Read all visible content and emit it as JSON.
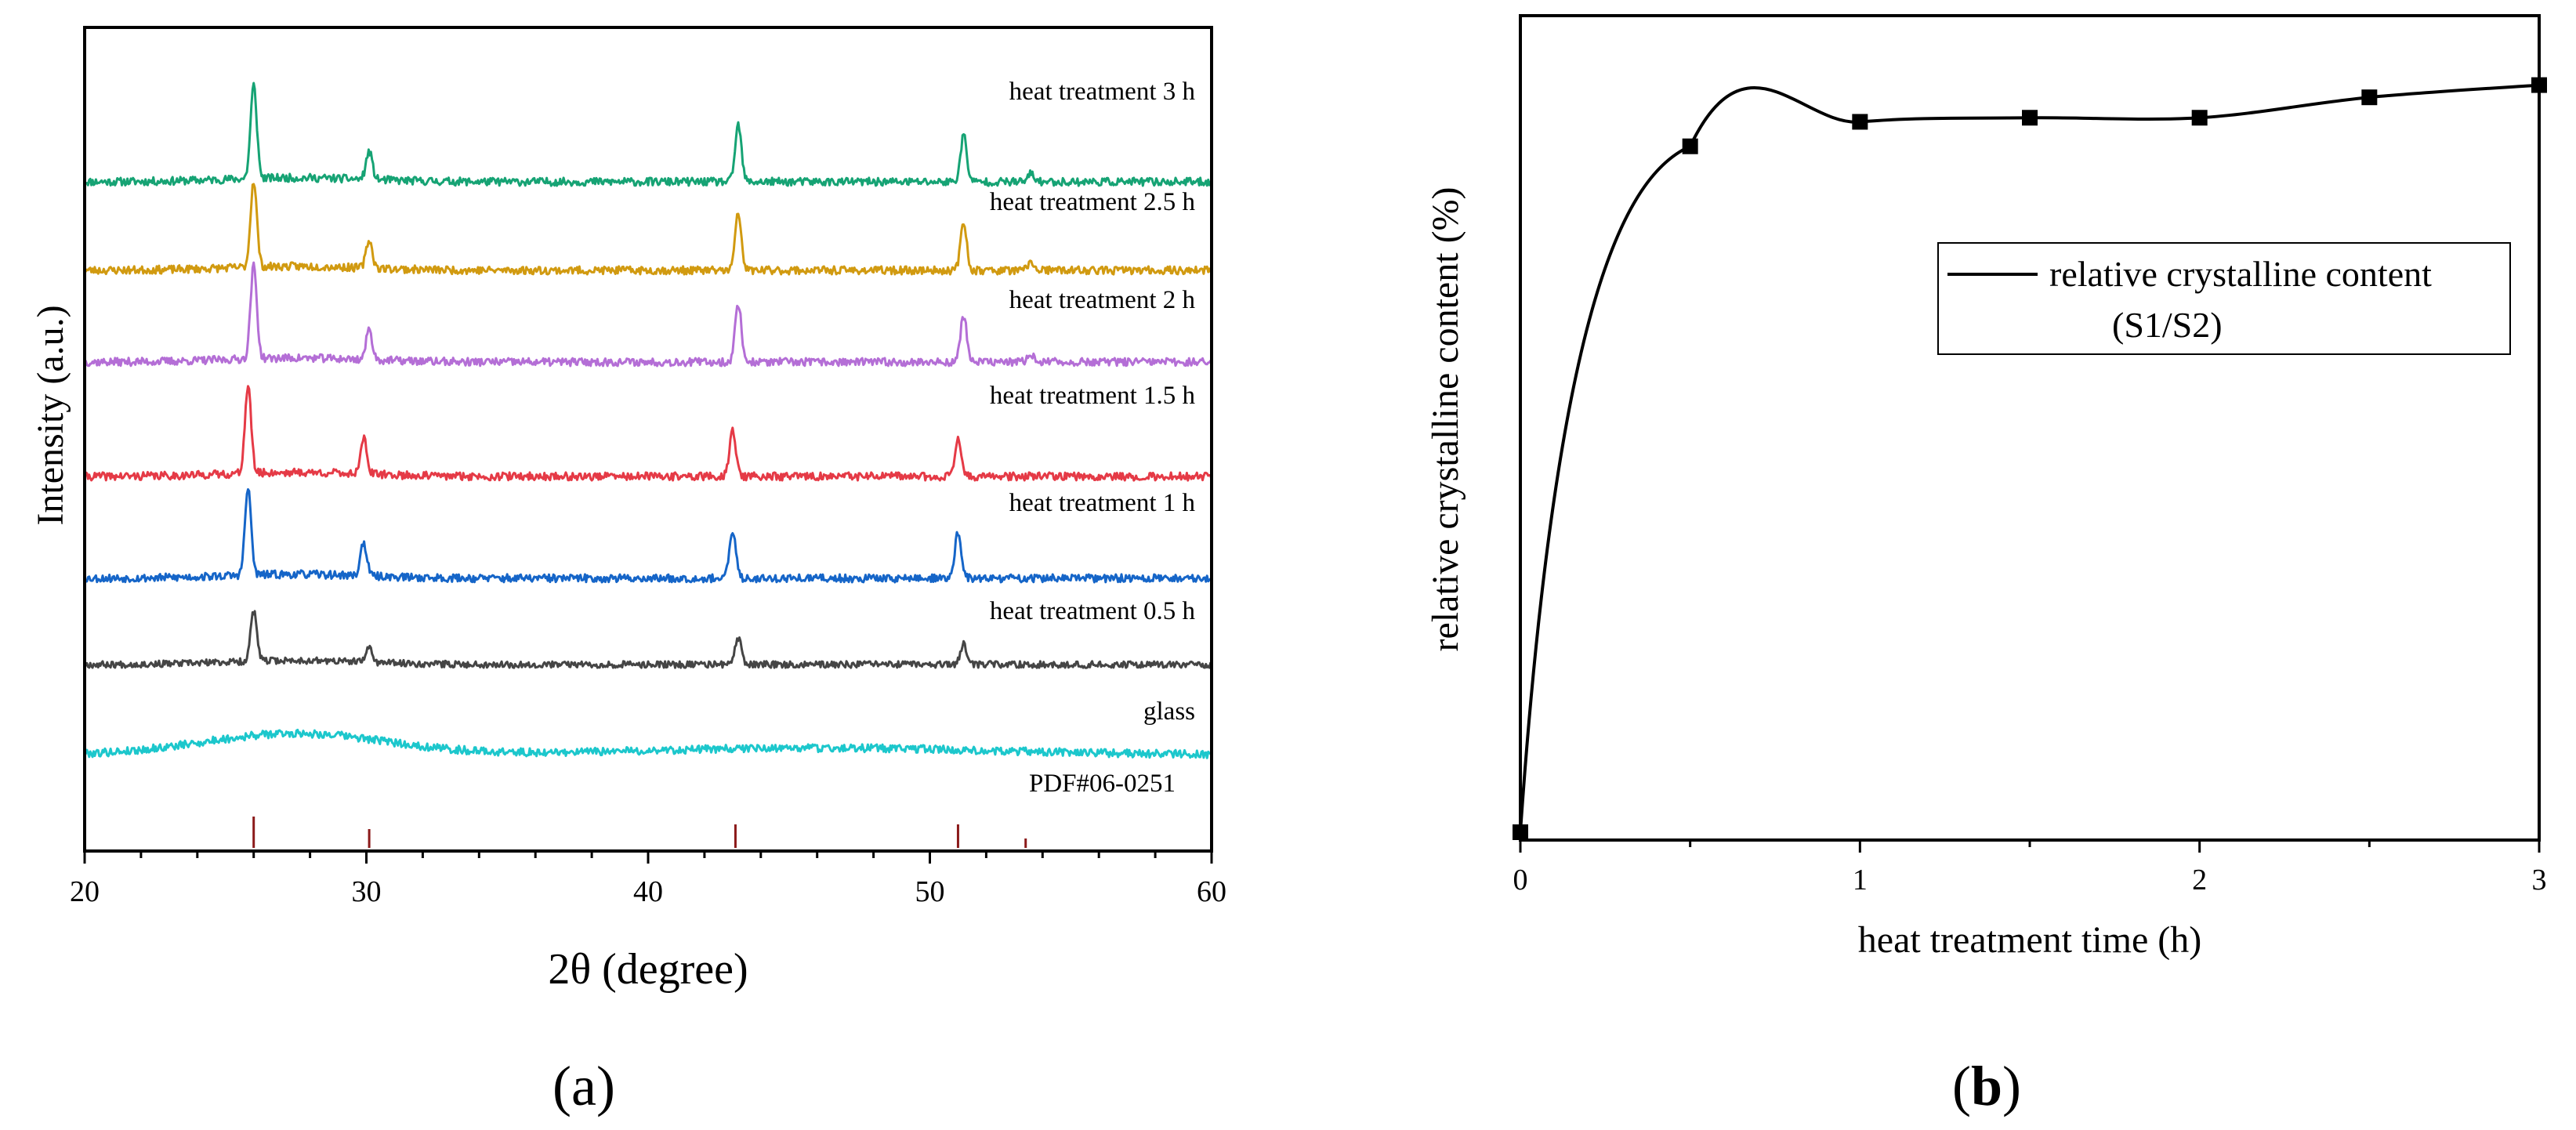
{
  "chart_data": [
    {
      "panel": "(a)",
      "panel_letter": "a",
      "type": "line",
      "xlabel": "2θ (degree)",
      "ylabel": "Intensity (a.u.)",
      "xlim": [
        20,
        60
      ],
      "xticks": [
        20,
        30,
        40,
        50,
        60
      ],
      "yticks_shown": false,
      "series": [
        {
          "name": "heat treatment 3 h",
          "color": "#16a374",
          "noise_seed": 11,
          "noise_amp": 0.06,
          "peaks": [
            {
              "x": 26.0,
              "h": 1.4
            },
            {
              "x": 30.1,
              "h": 0.42
            },
            {
              "x": 43.2,
              "h": 0.85
            },
            {
              "x": 51.2,
              "h": 0.7
            },
            {
              "x": 53.6,
              "h": 0.12
            }
          ]
        },
        {
          "name": "heat treatment 2.5 h",
          "color": "#d19a10",
          "noise_seed": 23,
          "noise_amp": 0.06,
          "peaks": [
            {
              "x": 26.0,
              "h": 1.3
            },
            {
              "x": 30.1,
              "h": 0.42
            },
            {
              "x": 43.2,
              "h": 0.85
            },
            {
              "x": 51.2,
              "h": 0.7
            },
            {
              "x": 53.6,
              "h": 0.12
            }
          ]
        },
        {
          "name": "heat treatment 2 h",
          "color": "#b46ed6",
          "noise_seed": 37,
          "noise_amp": 0.06,
          "peaks": [
            {
              "x": 26.0,
              "h": 1.4
            },
            {
              "x": 30.1,
              "h": 0.45
            },
            {
              "x": 43.2,
              "h": 0.88
            },
            {
              "x": 51.2,
              "h": 0.7
            },
            {
              "x": 53.6,
              "h": 0.12
            }
          ]
        },
        {
          "name": "heat treatment 1.5 h",
          "color": "#e53a46",
          "noise_seed": 41,
          "noise_amp": 0.06,
          "peaks": [
            {
              "x": 25.8,
              "h": 1.3
            },
            {
              "x": 29.9,
              "h": 0.55
            },
            {
              "x": 43.0,
              "h": 0.7
            },
            {
              "x": 51.0,
              "h": 0.6
            }
          ]
        },
        {
          "name": "heat treatment 1 h",
          "color": "#1565c8",
          "noise_seed": 53,
          "noise_amp": 0.06,
          "peaks": [
            {
              "x": 25.8,
              "h": 1.3
            },
            {
              "x": 29.9,
              "h": 0.5
            },
            {
              "x": 43.0,
              "h": 0.72
            },
            {
              "x": 51.0,
              "h": 0.7
            }
          ]
        },
        {
          "name": "heat treatment 0.5 h",
          "color": "#454545",
          "noise_seed": 67,
          "noise_amp": 0.05,
          "peaks": [
            {
              "x": 26.0,
              "h": 0.75
            },
            {
              "x": 30.1,
              "h": 0.22
            },
            {
              "x": 43.2,
              "h": 0.4
            },
            {
              "x": 51.2,
              "h": 0.3
            }
          ]
        },
        {
          "name": "glass",
          "color": "#1cc7cc",
          "noise_seed": 79,
          "noise_amp": 0.06,
          "amorphous": true,
          "peaks": []
        }
      ],
      "reference": {
        "name": "PDF#06-0251",
        "color": "#8b1a1a",
        "lines": [
          {
            "x": 26.0,
            "h": 1.0
          },
          {
            "x": 30.1,
            "h": 0.6
          },
          {
            "x": 43.1,
            "h": 0.75
          },
          {
            "x": 51.0,
            "h": 0.75
          },
          {
            "x": 53.4,
            "h": 0.3
          }
        ]
      }
    },
    {
      "panel": "(b)",
      "panel_letter": "b",
      "type": "line",
      "xlabel": "heat treatment time (h)",
      "ylabel": "relative crystalline content (%)",
      "xlim": [
        0,
        3
      ],
      "ylim": [
        0,
        1.0
      ],
      "xticks": [
        0,
        1,
        2,
        3
      ],
      "yticks_shown": false,
      "legend": {
        "label_line1": "relative crystalline content",
        "label_line2": "(S1/S2)",
        "position": "upper-right"
      },
      "series": [
        {
          "name": "relative crystalline content (S1/S2)",
          "color": "#000000",
          "x": [
            0,
            0.5,
            1.0,
            1.5,
            2.0,
            2.5,
            3.0
          ],
          "y": [
            0.0,
            0.84,
            0.87,
            0.875,
            0.875,
            0.9,
            0.915
          ]
        }
      ]
    }
  ]
}
